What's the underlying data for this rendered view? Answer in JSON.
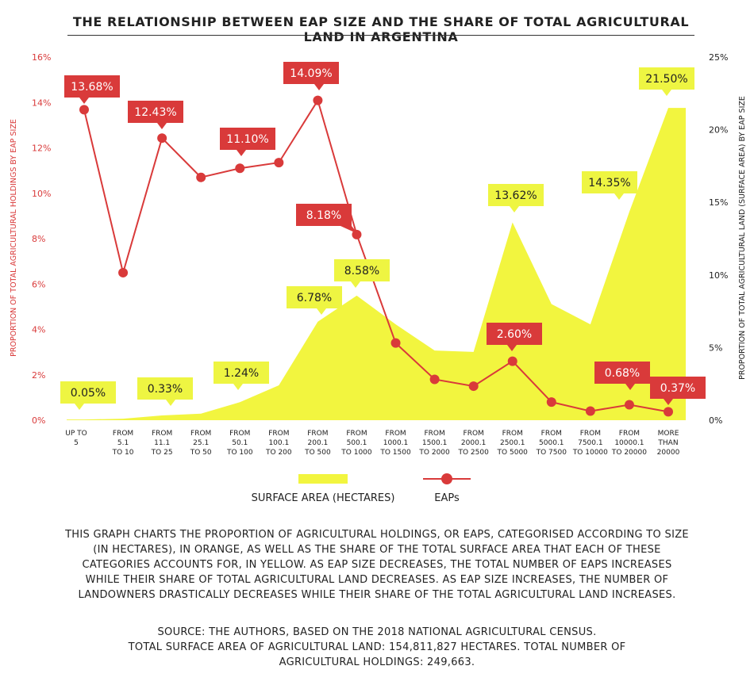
{
  "title": "THE RELATIONSHIP BETWEEN EAP SIZE AND THE SHARE OF TOTAL AGRICULTURAL LAND IN ARGENTINA",
  "description": "THIS GRAPH CHARTS THE PROPORTION OF AGRICULTURAL HOLDINGS, OR EAPS, CATEGORISED ACCORDING TO SIZE (IN HECTARES), IN ORANGE, AS WELL AS THE SHARE OF THE TOTAL SURFACE AREA THAT EACH OF THESE CATEGORIES ACCOUNTS FOR, IN YELLOW. AS EAP SIZE DECREASES, THE TOTAL NUMBER OF EAPS INCREASES WHILE THEIR SHARE OF TOTAL AGRICULTURAL LAND DECREASES. AS EAP SIZE INCREASES, THE NUMBER OF LANDOWNERS DRASTICALLY DECREASES WHILE THEIR SHARE OF THE TOTAL AGRICULTURAL LAND INCREASES.",
  "source_line1": "SOURCE: THE AUTHORS, BASED ON THE 2018 NATIONAL AGRICULTURAL CENSUS.",
  "source_line2": "TOTAL SURFACE AREA OF AGRICULTURAL LAND: 154,811,827 HECTARES. TOTAL NUMBER OF AGRICULTURAL HOLDINGS: 249,663.",
  "colors": {
    "eap": "#d93a3a",
    "area": "#f2f53f",
    "area_label": "#eef542",
    "text": "#222222"
  },
  "chart_data": {
    "type": "line",
    "categories": [
      [
        "UP TO",
        "5"
      ],
      [
        "FROM",
        "5.1",
        "TO 10"
      ],
      [
        "FROM",
        "11.1",
        "TO 25"
      ],
      [
        "FROM",
        "25.1",
        "TO 50"
      ],
      [
        "FROM",
        "50.1",
        "TO 100"
      ],
      [
        "FROM",
        "100.1",
        "TO 200"
      ],
      [
        "FROM",
        "200.1",
        "TO 500"
      ],
      [
        "FROM",
        "500.1",
        "TO 1000"
      ],
      [
        "FROM",
        "1000.1",
        "TO 1500"
      ],
      [
        "FROM",
        "1500.1",
        "TO 2000"
      ],
      [
        "FROM",
        "2000.1",
        "TO 2500"
      ],
      [
        "FROM",
        "2500.1",
        "TO 5000"
      ],
      [
        "FROM",
        "5000.1",
        "TO 7500"
      ],
      [
        "FROM",
        "7500.1",
        "TO 10000"
      ],
      [
        "FROM",
        "10000.1",
        "TO 20000"
      ],
      [
        "MORE",
        "THAN",
        "20000"
      ]
    ],
    "ylabel_left": "PROPORTION OF TOTAL AGRICULTURAL HOLDINGS BY EAP SIZE",
    "ylabel_right": "PROPORTION OF TOTAL AGRICULTURAL LAND (SURFACE AREA) BY EAP SIZE",
    "y_left_ticks": [
      "0%",
      "2%",
      "4%",
      "6%",
      "8%",
      "10%",
      "12%",
      "14%",
      "16%"
    ],
    "y_right_ticks": [
      "0%",
      "5%",
      "10%",
      "15%",
      "20%",
      "25%"
    ],
    "ylim_left": [
      0,
      16
    ],
    "ylim_right": [
      0,
      25
    ],
    "legend": {
      "area": "SURFACE AREA (HECTARES)",
      "eap": "EAPs",
      "position": "bottom"
    },
    "series": [
      {
        "name": "EAPs",
        "axis": "left",
        "values": [
          13.68,
          6.5,
          12.43,
          10.7,
          11.1,
          11.35,
          14.09,
          8.18,
          3.4,
          1.8,
          1.5,
          2.6,
          0.8,
          0.4,
          0.68,
          0.37
        ],
        "labels": [
          "13.68%",
          "",
          "12.43%",
          "",
          "11.10%",
          "",
          "14.09%",
          "8.18%",
          "",
          "",
          "",
          "2.60%",
          "",
          "",
          "0.68%",
          "0.37%"
        ]
      },
      {
        "name": "SURFACE AREA (HECTARES)",
        "axis": "right",
        "values": [
          0.05,
          0.1,
          0.33,
          0.45,
          1.24,
          2.4,
          6.78,
          8.58,
          6.6,
          4.8,
          4.7,
          13.62,
          8.0,
          6.6,
          14.35,
          21.5
        ],
        "labels": [
          "0.05%",
          "",
          "0.33%",
          "",
          "1.24%",
          "",
          "6.78%",
          "8.58%",
          "",
          "",
          "",
          "13.62%",
          "",
          "",
          "14.35%",
          "21.50%"
        ]
      }
    ]
  }
}
